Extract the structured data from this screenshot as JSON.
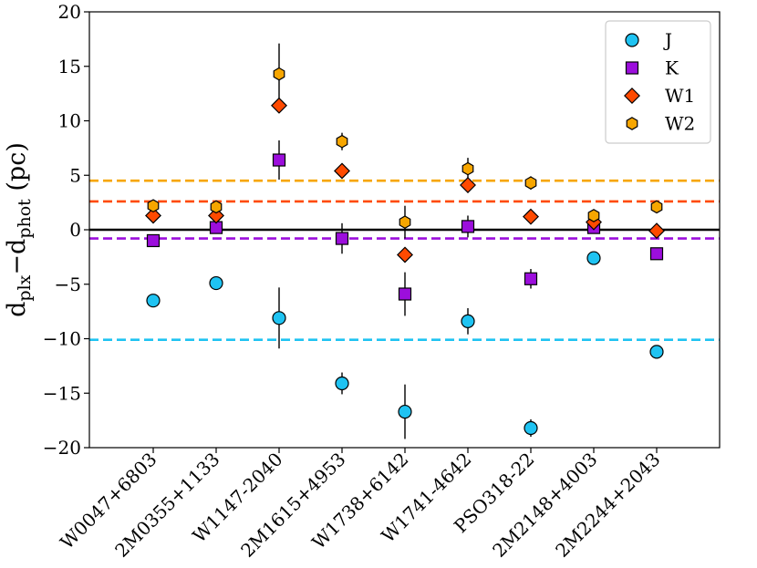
{
  "chart_data": {
    "type": "scatter",
    "title": "",
    "xlabel": "",
    "ylabel": {
      "base": "d",
      "sub1": "plx",
      "minus": "−d",
      "sub2": "phot",
      "unit": " (pc)"
    },
    "ylim": [
      -20,
      20
    ],
    "yticks": [
      -20,
      -15,
      -10,
      -5,
      0,
      5,
      10,
      15,
      20
    ],
    "ytick_labels": [
      "−20",
      "−15",
      "−10",
      "−5",
      "0",
      "5",
      "10",
      "15",
      "20"
    ],
    "categories": [
      "W0047+6803",
      "2M0355+1133",
      "W1147-2040",
      "2M1615+4953",
      "W1738+6142",
      "W1741-4642",
      "PSO318-22",
      "2M2148+4003",
      "2M2244+2043"
    ],
    "zero_line": 0,
    "legend_position": "top-right",
    "series": [
      {
        "name": "J",
        "marker": "circle",
        "color": "#1fc3f2",
        "mean_line": -10.1,
        "values": [
          -6.5,
          -4.9,
          -8.1,
          -14.1,
          -16.7,
          -8.4,
          -18.2,
          -2.6,
          -11.2
        ],
        "errors": [
          0.3,
          0.3,
          2.8,
          1.0,
          2.5,
          1.2,
          0.8,
          0.3,
          0.3
        ]
      },
      {
        "name": "K",
        "marker": "square",
        "color": "#9c0edc",
        "mean_line": -0.8,
        "values": [
          -1.0,
          0.2,
          6.4,
          -0.8,
          -5.9,
          0.3,
          -4.5,
          0.2,
          -2.2
        ],
        "errors": [
          0.3,
          0.3,
          1.8,
          1.4,
          2.0,
          1.0,
          0.9,
          0.3,
          0.3
        ]
      },
      {
        "name": "W1",
        "marker": "diamond",
        "color": "#ff4a00",
        "mean_line": 2.6,
        "values": [
          1.3,
          1.3,
          11.4,
          5.4,
          -2.3,
          4.1,
          1.2,
          0.7,
          -0.1
        ],
        "errors": [
          0.3,
          0.3,
          0.6,
          0.3,
          0.3,
          0.7,
          0.3,
          0.3,
          0.3
        ]
      },
      {
        "name": "W2",
        "marker": "hexagon",
        "color": "#f7a600",
        "mean_line": 4.5,
        "values": [
          2.2,
          2.1,
          14.3,
          8.1,
          0.7,
          5.6,
          4.3,
          1.3,
          2.1
        ],
        "errors": [
          0.3,
          0.3,
          2.8,
          0.8,
          1.5,
          1.0,
          0.6,
          0.3,
          0.3
        ]
      }
    ]
  }
}
